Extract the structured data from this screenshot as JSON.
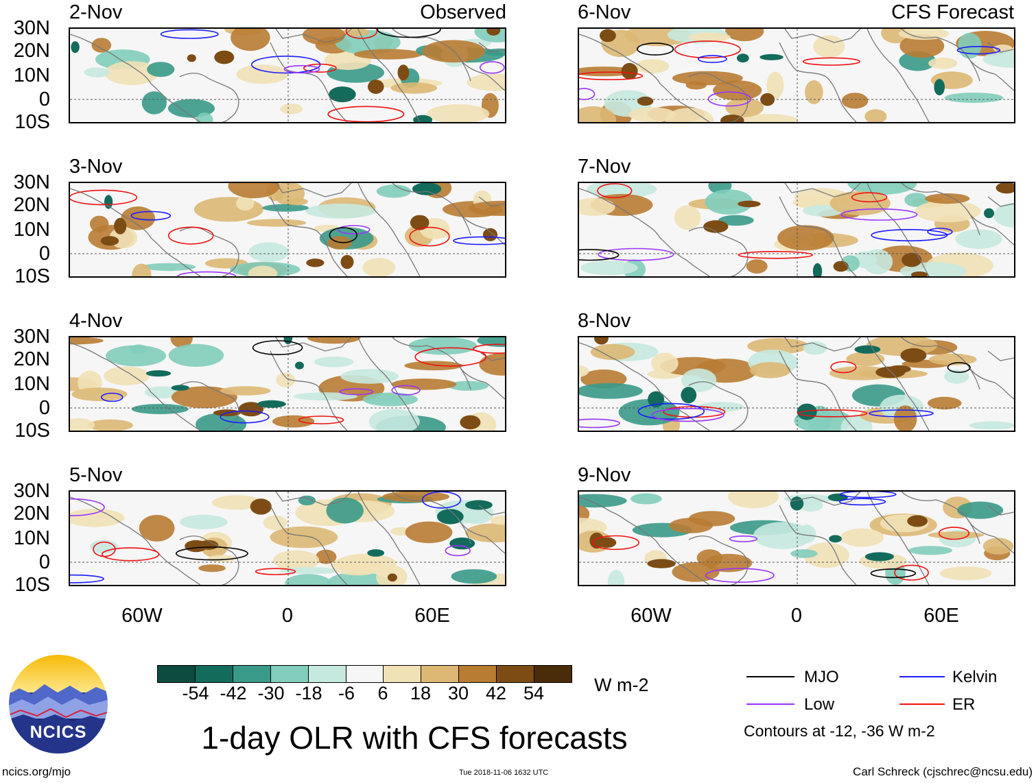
{
  "observed": {
    "label": "Observed",
    "dates": [
      "2-Nov",
      "3-Nov",
      "4-Nov",
      "5-Nov"
    ]
  },
  "forecast": {
    "label": "CFS Forecast",
    "dates": [
      "6-Nov",
      "7-Nov",
      "8-Nov",
      "9-Nov"
    ]
  },
  "lat_labels": [
    "30N",
    "20N",
    "10N",
    "0",
    "10S"
  ],
  "lon_labels": [
    "60W",
    "0",
    "60E"
  ],
  "colorbar": {
    "unit": "W m-2",
    "ticks": [
      "-54",
      "-42",
      "-30",
      "-18",
      "-6",
      "6",
      "18",
      "30",
      "42",
      "54"
    ],
    "colors": [
      "#0d4a40",
      "#136b5c",
      "#3a9a8a",
      "#82cdbb",
      "#c6e9df",
      "#f6f6f6",
      "#f1e1b6",
      "#ddb874",
      "#b97c33",
      "#7d4c15",
      "#4b2c0a"
    ]
  },
  "legend": {
    "mjo": "MJO",
    "kelvin": "Kelvin",
    "low": "Low",
    "er": "ER",
    "note": "Contours at -12, -36 W m-2",
    "colors": {
      "mjo": "#000000",
      "kelvin": "#1a1aff",
      "low": "#9933ff",
      "er": "#ee1111"
    }
  },
  "logo_text": "NCICS",
  "title": "1-day OLR with CFS forecasts",
  "footer": {
    "left": "ncics.org/mjo",
    "center": "Tue 2018-11-06 1632 UTC",
    "right": "Carl Schreck (cjschrec@ncsu.edu)"
  }
}
